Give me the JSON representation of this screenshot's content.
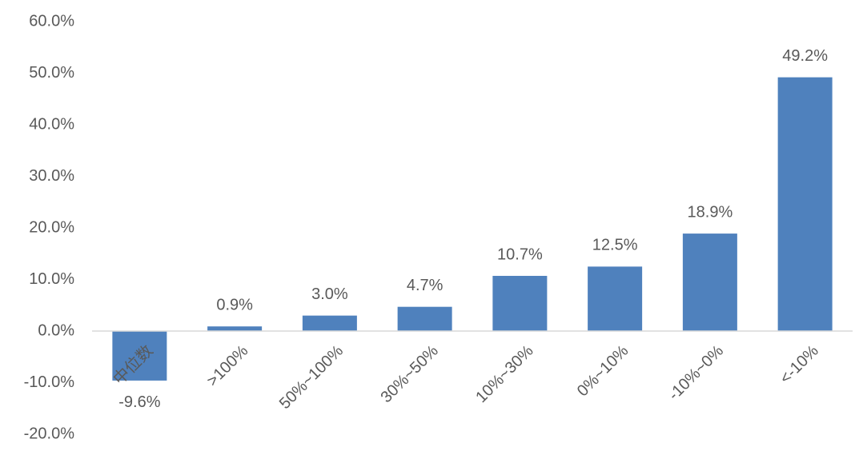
{
  "chart_data": {
    "type": "bar",
    "categories": [
      "中位数",
      ">100%",
      "50%~100%",
      "30%~50%",
      "10%~30%",
      "0%~10%",
      "-10%~0%",
      "<-10%"
    ],
    "values": [
      -9.6,
      0.9,
      3.0,
      4.7,
      10.7,
      12.5,
      18.9,
      49.2
    ],
    "value_labels": [
      "-9.6%",
      "0.9%",
      "3.0%",
      "4.7%",
      "10.7%",
      "12.5%",
      "18.9%",
      "49.2%"
    ],
    "color": "#4f81bd",
    "ylim": [
      -20,
      60
    ],
    "yticks": [
      {
        "value": -20,
        "label": "-20.0%"
      },
      {
        "value": -10,
        "label": "-10.0%"
      },
      {
        "value": 0,
        "label": "0.0%"
      },
      {
        "value": 10,
        "label": "10.0%"
      },
      {
        "value": 20,
        "label": "20.0%"
      },
      {
        "value": 30,
        "label": "30.0%"
      },
      {
        "value": 40,
        "label": "40.0%"
      },
      {
        "value": 50,
        "label": "50.0%"
      },
      {
        "value": 60,
        "label": "60.0%"
      }
    ],
    "grid": false
  }
}
